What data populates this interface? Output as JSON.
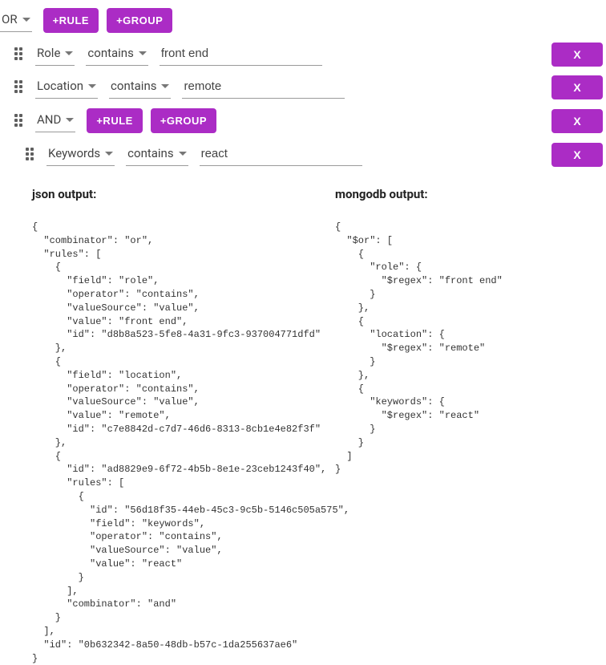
{
  "colors": {
    "accent": "#ab2cc5",
    "border": "#9a9a9a",
    "text": "#333333",
    "background": "#ffffff"
  },
  "buttons": {
    "addRule": "+RULE",
    "addGroup": "+GROUP",
    "delete": "X"
  },
  "root": {
    "combinator": "OR",
    "rules": [
      {
        "field": "Role",
        "operator": "contains",
        "value": "front end"
      },
      {
        "field": "Location",
        "operator": "contains",
        "value": "remote"
      },
      {
        "combinator": "AND",
        "rules": [
          {
            "field": "Keywords",
            "operator": "contains",
            "value": "react"
          }
        ]
      }
    ]
  },
  "outputLabels": {
    "json": "json output:",
    "mongodb": "mongodb output:"
  },
  "jsonOutput": "{\n  \"combinator\": \"or\",\n  \"rules\": [\n    {\n      \"field\": \"role\",\n      \"operator\": \"contains\",\n      \"valueSource\": \"value\",\n      \"value\": \"front end\",\n      \"id\": \"d8b8a523-5fe8-4a31-9fc3-937004771dfd\"\n    },\n    {\n      \"field\": \"location\",\n      \"operator\": \"contains\",\n      \"valueSource\": \"value\",\n      \"value\": \"remote\",\n      \"id\": \"c7e8842d-c7d7-46d6-8313-8cb1e4e82f3f\"\n    },\n    {\n      \"id\": \"ad8829e9-6f72-4b5b-8e1e-23ceb1243f40\",\n      \"rules\": [\n        {\n          \"id\": \"56d18f35-44eb-45c3-9c5b-5146c505a575\",\n          \"field\": \"keywords\",\n          \"operator\": \"contains\",\n          \"valueSource\": \"value\",\n          \"value\": \"react\"\n        }\n      ],\n      \"combinator\": \"and\"\n    }\n  ],\n  \"id\": \"0b632342-8a50-48db-b57c-1da255637ae6\"\n}",
  "mongodbOutput": "{\n  \"$or\": [\n    {\n      \"role\": {\n        \"$regex\": \"front end\"\n      }\n    },\n    {\n      \"location\": {\n        \"$regex\": \"remote\"\n      }\n    },\n    {\n      \"keywords\": {\n        \"$regex\": \"react\"\n      }\n    }\n  ]\n}"
}
